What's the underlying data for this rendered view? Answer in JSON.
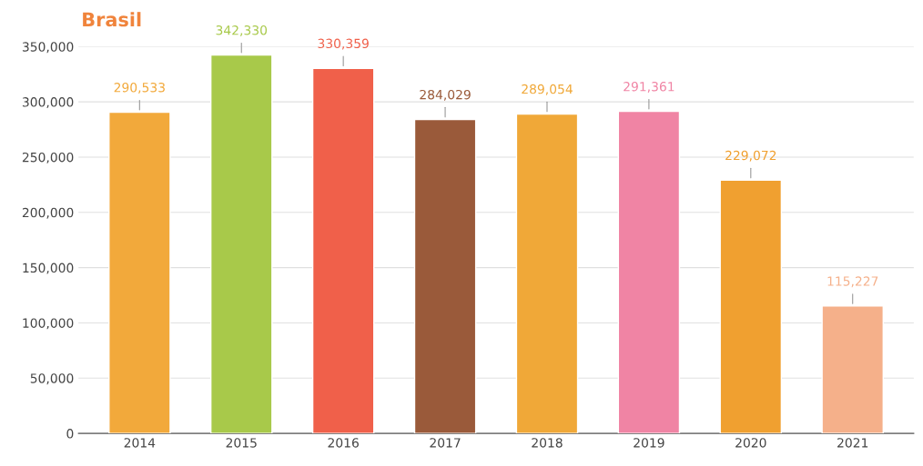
{
  "chart_data": {
    "type": "bar",
    "title": "Brasil",
    "categories": [
      "2014",
      "2015",
      "2016",
      "2017",
      "2018",
      "2019",
      "2020",
      "2021"
    ],
    "values": [
      290533,
      342330,
      330359,
      284029,
      289054,
      291361,
      229072,
      115227
    ],
    "colors": [
      "#f2a93b",
      "#a8c94a",
      "#f0604a",
      "#9a5a3a",
      "#f0a838",
      "#f084a4",
      "#f0a030",
      "#f5b08a"
    ],
    "value_labels": [
      "290,533",
      "342,330",
      "330,359",
      "284,029",
      "289,054",
      "291,361",
      "229,072",
      "115,227"
    ],
    "ylim": [
      0,
      350000
    ],
    "yticks": [
      {
        "value": 0,
        "label": "0"
      },
      {
        "value": 50000,
        "label": "50,000"
      },
      {
        "value": 100000,
        "label": "100,000"
      },
      {
        "value": 150000,
        "label": "150,000"
      },
      {
        "value": 200000,
        "label": "200,000"
      },
      {
        "value": 250000,
        "label": "250,000"
      },
      {
        "value": 300000,
        "label": "300,000"
      },
      {
        "value": 350000,
        "label": "350,000"
      }
    ],
    "grid": "y",
    "legend": false
  }
}
